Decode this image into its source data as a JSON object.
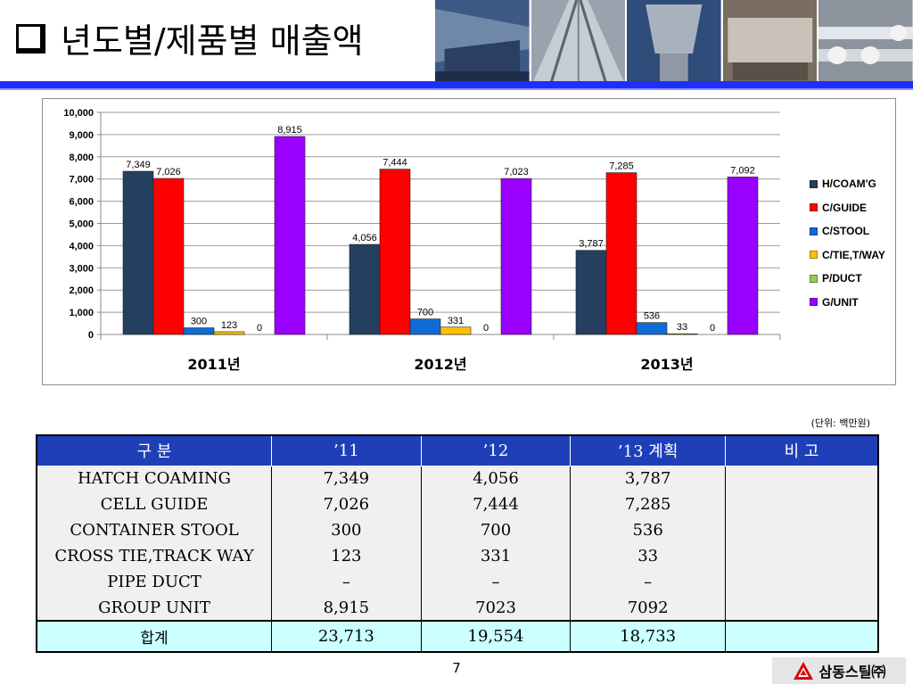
{
  "header": {
    "title": "년도별/제품별 매출액",
    "photos": [
      "steel-beam-photo",
      "steel-rails-photo",
      "steel-structure-photo",
      "steel-rack-photo",
      "pipe-photo"
    ]
  },
  "colors": {
    "accent_rule": "#1f2eff",
    "table_header": "#1f3fb8",
    "total_row": "#ccffff"
  },
  "chart_data": {
    "type": "bar",
    "categories": [
      "2011년",
      "2012년",
      "2013년"
    ],
    "series": [
      {
        "name": "H/COAM'G",
        "color": "#243f60",
        "values": [
          7349,
          4056,
          3787
        ],
        "labels": [
          "7,349",
          "4,056",
          "3,787"
        ]
      },
      {
        "name": "C/GUIDE",
        "color": "#ff0000",
        "values": [
          7026,
          7444,
          7285
        ],
        "labels": [
          "7,026",
          "7,444",
          "7,285"
        ]
      },
      {
        "name": "C/STOOL",
        "color": "#0f6bd6",
        "values": [
          300,
          700,
          536
        ],
        "labels": [
          "300",
          "700",
          "536"
        ]
      },
      {
        "name": "C/TIE,T/WAY",
        "color": "#ffc000",
        "values": [
          123,
          331,
          33
        ],
        "labels": [
          "123",
          "331",
          "33"
        ]
      },
      {
        "name": "P/DUCT",
        "color": "#92d050",
        "values": [
          0,
          0,
          0
        ],
        "labels": [
          "0",
          "0",
          "0"
        ]
      },
      {
        "name": "G/UNIT",
        "color": "#9900ff",
        "values": [
          8915,
          7023,
          7092
        ],
        "labels": [
          "8,915",
          "7,023",
          "7,092"
        ]
      }
    ],
    "ylim": [
      0,
      10000
    ],
    "yticks": [
      "0",
      "1,000",
      "2,000",
      "3,000",
      "4,000",
      "5,000",
      "6,000",
      "7,000",
      "8,000",
      "9,000",
      "10,000"
    ],
    "grid": true,
    "legend_position": "right"
  },
  "unit_note": "(단위: 백만원)",
  "table": {
    "headers": [
      "구 분",
      "’11",
      "’12",
      "’13 계획",
      "비 고"
    ],
    "rows": [
      [
        "HATCH COAMING",
        "7,349",
        "4,056",
        "3,787",
        ""
      ],
      [
        "CELL GUIDE",
        "7,026",
        "7,444",
        "7,285",
        ""
      ],
      [
        "CONTAINER STOOL",
        "300",
        "700",
        "536",
        ""
      ],
      [
        "CROSS TIE,TRACK WAY",
        "123",
        "331",
        "33",
        ""
      ],
      [
        "PIPE DUCT",
        "–",
        "–",
        "–",
        ""
      ],
      [
        "GROUP UNIT",
        "8,915",
        "7023",
        "7092",
        ""
      ]
    ],
    "total": [
      "합계",
      "23,713",
      "19,554",
      "18,733",
      ""
    ]
  },
  "footer": {
    "page_number": "7",
    "company": "삼동스틸㈜"
  }
}
